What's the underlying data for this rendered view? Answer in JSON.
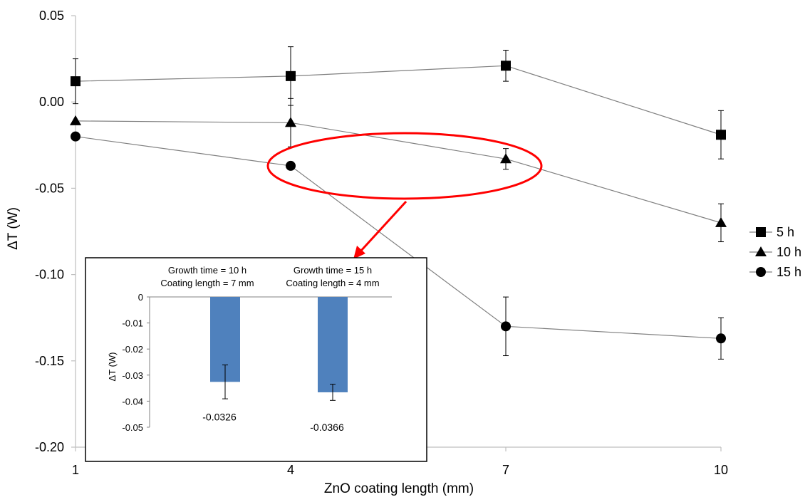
{
  "chart_data": [
    {
      "type": "line",
      "xlabel": "ZnO coating length (mm)",
      "ylabel": "ΔT (W)",
      "x": [
        1,
        4,
        7,
        10
      ],
      "xticks": [
        "1",
        "4",
        "7",
        "10"
      ],
      "ylim": [
        -0.2,
        0.05
      ],
      "yticks": [
        "0.05",
        "0.00",
        "-0.05",
        "-0.10",
        "-0.15",
        "-0.20"
      ],
      "legend_position": "right",
      "series": [
        {
          "name": "5 h",
          "marker": "square",
          "values": [
            0.012,
            0.015,
            0.021,
            -0.019
          ],
          "errors": [
            0.013,
            0.017,
            0.009,
            0.014
          ]
        },
        {
          "name": "10 h",
          "marker": "triangle",
          "values": [
            -0.011,
            -0.012,
            -0.033,
            -0.07
          ],
          "errors": [
            0.0,
            0.014,
            0.006,
            0.011
          ]
        },
        {
          "name": "15 h",
          "marker": "circle",
          "values": [
            -0.02,
            -0.037,
            -0.13,
            -0.137
          ],
          "errors": [
            0.0,
            0.0,
            0.017,
            0.012
          ]
        }
      ],
      "highlight_color": "#ff0000"
    },
    {
      "type": "bar",
      "ylabel": "ΔT (W)",
      "ylim": [
        -0.05,
        0
      ],
      "yticks": [
        "0",
        "-0.01",
        "-0.02",
        "-0.03",
        "-0.04",
        "-0.05"
      ],
      "categories": [
        [
          "Growth time = 10 h",
          "Coating length = 7 mm"
        ],
        [
          "Growth time = 15 h",
          "Coating length = 4 mm"
        ]
      ],
      "values": [
        -0.0326,
        -0.0366
      ],
      "value_labels": [
        "-0.0326",
        "-0.0366"
      ],
      "errors": [
        0.0065,
        0.0031
      ],
      "bar_color": "#4f81bd"
    }
  ]
}
